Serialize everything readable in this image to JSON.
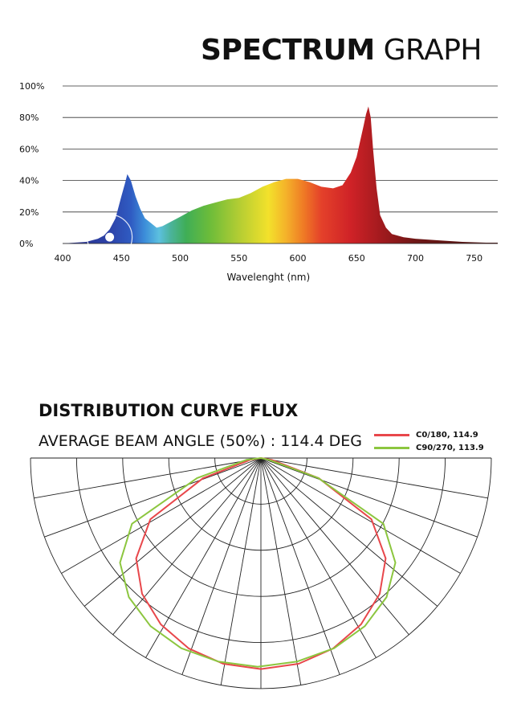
{
  "spectrum": {
    "title_bold": "SPECTRUM",
    "title_normal": "GRAPH"
  },
  "distribution": {
    "title": "DISTRIBUTION CURVE FLUX",
    "subtitle": "AVERAGE BEAM ANGLE  (50%) : 114.4 DEG"
  },
  "chart_data": [
    {
      "type": "area",
      "title": "SPECTRUM GRAPH",
      "xlabel": "Wavelenght (nm)",
      "ylabel": "",
      "xlim": [
        400,
        770
      ],
      "ylim": [
        0,
        100
      ],
      "xticks": [
        400,
        450,
        500,
        550,
        600,
        650,
        700,
        750
      ],
      "xtick_labels": [
        "400",
        "450",
        "500",
        "550",
        "600",
        "650",
        "700",
        "750"
      ],
      "yticks": [
        0,
        20,
        40,
        60,
        80,
        100
      ],
      "ytick_labels": [
        "0%",
        "20%",
        "40%",
        "60%",
        "80%",
        "100%"
      ],
      "grid": true,
      "fill": "wavelength color gradient",
      "x": [
        400,
        410,
        420,
        430,
        435,
        440,
        445,
        450,
        453,
        455,
        458,
        462,
        466,
        470,
        475,
        480,
        485,
        490,
        500,
        510,
        520,
        530,
        540,
        550,
        560,
        570,
        580,
        590,
        600,
        610,
        620,
        630,
        638,
        645,
        650,
        653,
        656,
        658,
        660,
        662,
        664,
        667,
        670,
        675,
        680,
        690,
        700,
        720,
        740,
        760,
        770
      ],
      "y": [
        0,
        0.5,
        1,
        3,
        5,
        9,
        16,
        30,
        38,
        44,
        40,
        30,
        22,
        16,
        13,
        10,
        11,
        13,
        17,
        21,
        24,
        26,
        28,
        29,
        32,
        36,
        39,
        41,
        41,
        39,
        36,
        35,
        37,
        45,
        55,
        65,
        75,
        82,
        87,
        80,
        60,
        35,
        18,
        10,
        6,
        4,
        3,
        2,
        1,
        0.5,
        0.5
      ]
    },
    {
      "type": "polar",
      "title": "DISTRIBUTION CURVE FLUX",
      "beam_angle_50_percent": 114.4,
      "grid": true,
      "series": [
        {
          "name": "C0/180, 114.9",
          "color": "#e8474b",
          "angles_deg": [
            0,
            10,
            20,
            30,
            40,
            50,
            60,
            70,
            80,
            90
          ],
          "r": [
            1.0,
            0.99,
            0.96,
            0.91,
            0.84,
            0.74,
            0.58,
            0.28,
            0.05,
            0
          ]
        },
        {
          "name": "C90/270, 113.9",
          "color": "#8cc63f",
          "angles_deg": [
            0,
            10,
            20,
            30,
            40,
            50,
            60,
            70,
            80,
            90
          ],
          "r": [
            1.0,
            0.99,
            0.97,
            0.93,
            0.87,
            0.78,
            0.63,
            0.28,
            0.05,
            0
          ]
        }
      ]
    }
  ]
}
